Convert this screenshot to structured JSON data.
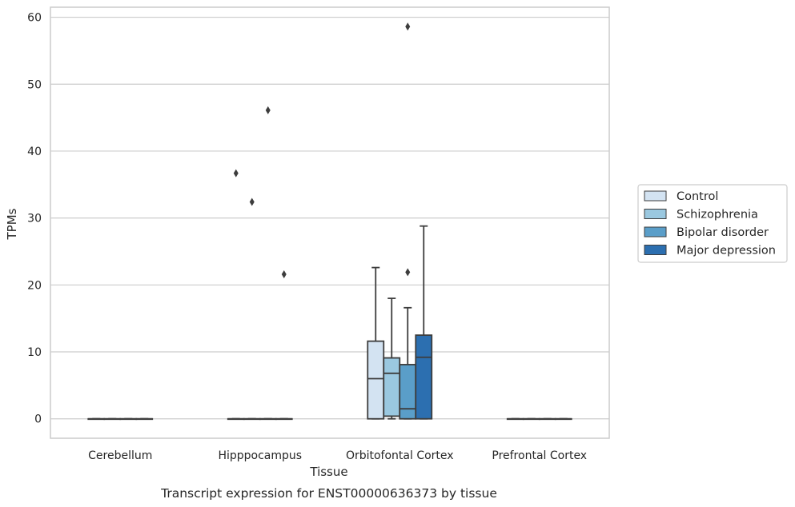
{
  "chart_data": {
    "type": "box",
    "caption": "Transcript expression for ENST00000636373 by tissue",
    "xlabel": "Tissue",
    "ylabel": "TPMs",
    "ylim": [
      -2.9,
      61.5
    ],
    "yticks": [
      0,
      10,
      20,
      30,
      40,
      50,
      60
    ],
    "grid": "horizontal",
    "legend_placement": "right",
    "categories": [
      "Cerebellum",
      "Hipppocampus",
      "Orbitofontal Cortex",
      "Prefrontal Cortex"
    ],
    "series": [
      {
        "name": "Control",
        "color": "#d3e3f2",
        "boxes": [
          {
            "q1": 0,
            "median": 0,
            "q3": 0,
            "whislo": 0,
            "whishi": 0,
            "fliers": []
          },
          {
            "q1": 0,
            "median": 0,
            "q3": 0,
            "whislo": 0,
            "whishi": 0,
            "fliers": [
              36.7
            ]
          },
          {
            "q1": 0,
            "median": 6.0,
            "q3": 11.6,
            "whislo": 0,
            "whishi": 22.6,
            "fliers": []
          },
          {
            "q1": 0,
            "median": 0,
            "q3": 0,
            "whislo": 0,
            "whishi": 0,
            "fliers": []
          }
        ]
      },
      {
        "name": "Schizophrenia",
        "color": "#9ac8e0",
        "boxes": [
          {
            "q1": 0,
            "median": 0,
            "q3": 0,
            "whislo": 0,
            "whishi": 0,
            "fliers": []
          },
          {
            "q1": 0,
            "median": 0,
            "q3": 0,
            "whislo": 0,
            "whishi": 0,
            "fliers": [
              32.4
            ]
          },
          {
            "q1": 0.4,
            "median": 6.8,
            "q3": 9.1,
            "whislo": 0,
            "whishi": 18.0,
            "fliers": []
          },
          {
            "q1": 0,
            "median": 0,
            "q3": 0,
            "whislo": 0,
            "whishi": 0,
            "fliers": []
          }
        ]
      },
      {
        "name": "Bipolar disorder",
        "color": "#5a9ec9",
        "boxes": [
          {
            "q1": 0,
            "median": 0,
            "q3": 0,
            "whislo": 0,
            "whishi": 0,
            "fliers": []
          },
          {
            "q1": 0,
            "median": 0,
            "q3": 0,
            "whislo": 0,
            "whishi": 0,
            "fliers": [
              46.1
            ]
          },
          {
            "q1": 0,
            "median": 1.5,
            "q3": 8.1,
            "whislo": 0,
            "whishi": 16.6,
            "fliers": [
              21.9,
              58.6
            ]
          },
          {
            "q1": 0,
            "median": 0,
            "q3": 0,
            "whislo": 0,
            "whishi": 0,
            "fliers": []
          }
        ]
      },
      {
        "name": "Major depression",
        "color": "#2c6fb0",
        "boxes": [
          {
            "q1": 0,
            "median": 0,
            "q3": 0,
            "whislo": 0,
            "whishi": 0,
            "fliers": []
          },
          {
            "q1": 0,
            "median": 0,
            "q3": 0,
            "whislo": 0,
            "whishi": 0,
            "fliers": [
              21.6
            ]
          },
          {
            "q1": 0,
            "median": 9.2,
            "q3": 12.5,
            "whislo": 0,
            "whishi": 28.8,
            "fliers": []
          },
          {
            "q1": 0,
            "median": 0,
            "q3": 0,
            "whislo": 0,
            "whishi": 0,
            "fliers": []
          }
        ]
      }
    ]
  }
}
